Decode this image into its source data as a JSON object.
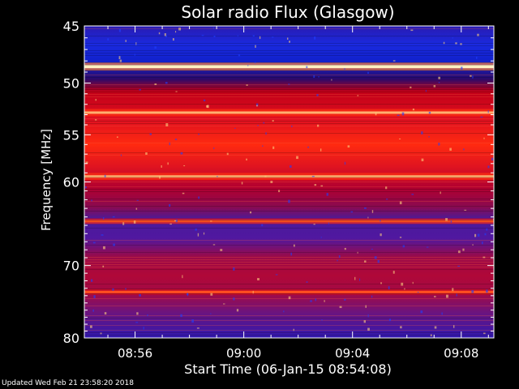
{
  "chart_data": {
    "type": "heatmap",
    "title": "Solar radio Flux (Glasgow)",
    "ylabel": "Frequency [MHz]",
    "xlabel": "Start Time (06-Jan-15 08:54:08)",
    "ylim": [
      45,
      80
    ],
    "y_scale": "log",
    "xlim": [
      "08:54:08",
      "09:09:12"
    ],
    "y_ticks": [
      45,
      50,
      55,
      60,
      70,
      80
    ],
    "x_ticks": [
      "08:56",
      "09:00",
      "09:04",
      "09:08"
    ],
    "colors": {
      "background": "#000000",
      "low": "#1a0f9a",
      "mid": "#c80020",
      "high": "#ff4020",
      "peak": "#fff0c0"
    },
    "emission_bands_mhz": [
      {
        "freq": 48.5,
        "level": "peak"
      },
      {
        "freq": 52.8,
        "level": "high"
      },
      {
        "freq": 59.4,
        "level": "high"
      },
      {
        "freq": 64.5,
        "level": "medium"
      },
      {
        "freq": 73.5,
        "level": "medium"
      }
    ]
  },
  "footer": {
    "updated": "Updated Wed Feb 21 23:58:20 2018"
  }
}
